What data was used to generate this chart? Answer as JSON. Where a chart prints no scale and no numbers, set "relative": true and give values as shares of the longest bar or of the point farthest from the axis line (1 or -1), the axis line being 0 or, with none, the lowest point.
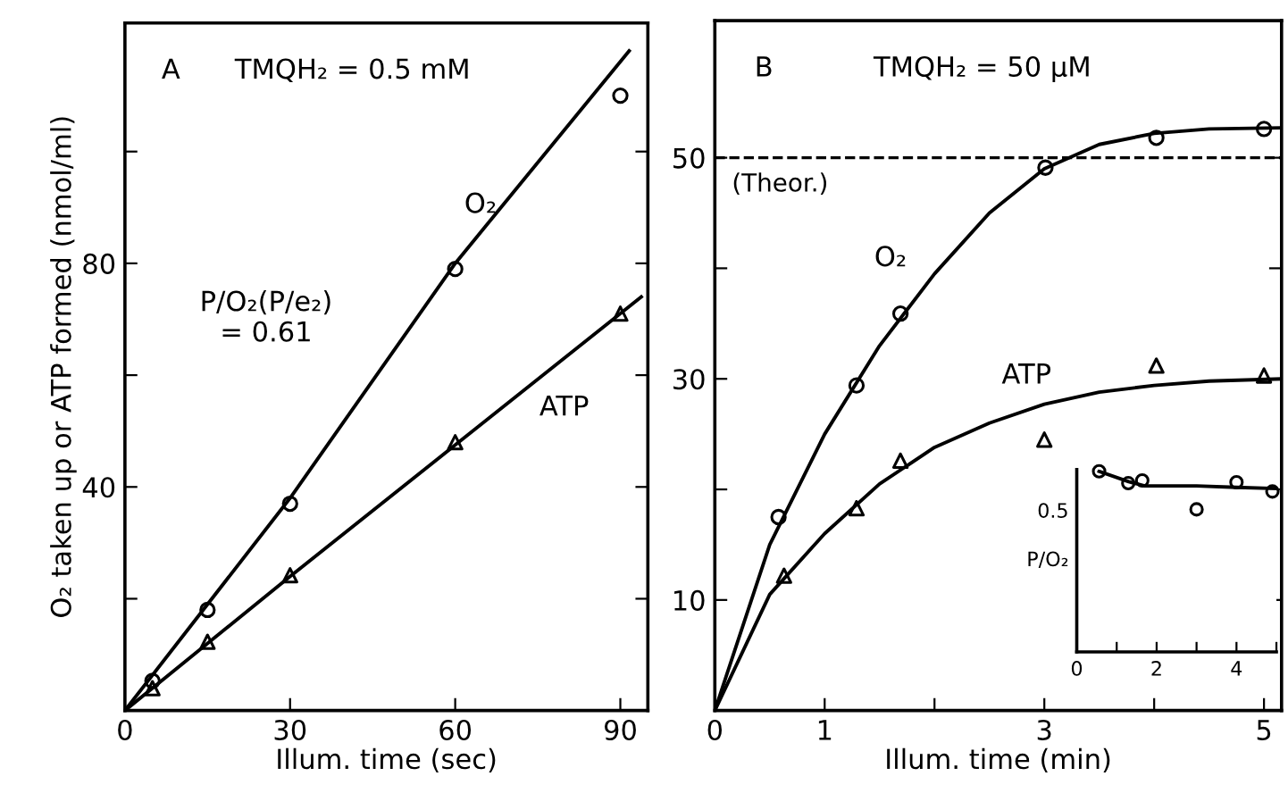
{
  "chart_data": [
    {
      "type": "scatter",
      "xlabel": "Illum. time (sec)",
      "ylabel": "O₂ taken up or ATP formed (nmol/ml)",
      "xlim": [
        0,
        95
      ],
      "ylim": [
        0,
        123
      ],
      "xticks": [
        0,
        30,
        60,
        90
      ],
      "yticks": [
        {
          "value": 20,
          "label": null
        },
        40,
        {
          "value": 60,
          "label": null
        },
        80,
        {
          "value": 100,
          "label": null
        }
      ],
      "grid": false,
      "legend": false,
      "series": [
        {
          "marker": "circle",
          "color": "#000000",
          "x": [
            5,
            15,
            30,
            60,
            90
          ],
          "values": [
            5.3,
            18,
            37,
            79,
            110
          ]
        },
        {
          "type": "line",
          "marker": "none",
          "line_style": "solid",
          "color": "#000000",
          "x": [
            0,
            30,
            60,
            91.6
          ],
          "values": [
            0,
            38,
            80,
            118
          ]
        },
        {
          "marker": "triangle",
          "color": "#000000",
          "x": [
            5,
            15,
            30,
            60,
            90
          ],
          "values": [
            4,
            12.3,
            24.2,
            48,
            71
          ]
        },
        {
          "type": "line",
          "marker": "none",
          "line_style": "solid",
          "color": "#000000",
          "x": [
            0,
            30,
            60,
            93.8
          ],
          "values": [
            0,
            24,
            47.5,
            74
          ]
        }
      ],
      "annotations": [
        "A",
        "TMQH₂ = 0.5 mM",
        "P/O₂(P/e₂)\n= 0.61",
        "O₂",
        "ATP"
      ]
    },
    {
      "type": "scatter",
      "xlabel": "Illum. time (min)",
      "xlim": [
        0,
        5.16
      ],
      "ylim": [
        0,
        62.4
      ],
      "xticks": [
        0,
        1,
        {
          "value": 2,
          "label": null
        },
        3,
        {
          "value": 4,
          "label": null
        },
        5
      ],
      "yticks": [
        10,
        {
          "value": 20,
          "label": null
        },
        30,
        {
          "value": 40,
          "label": null
        },
        50
      ],
      "grid": false,
      "legend": false,
      "series": [
        {
          "marker": "circle",
          "color": "#000000",
          "x": [
            0.58,
            1.29,
            1.69,
            3.01,
            4.02,
            5.0
          ],
          "values": [
            17.5,
            29.4,
            35.9,
            49.1,
            51.8,
            52.6
          ]
        },
        {
          "type": "line",
          "marker": "none",
          "line_style": "solid",
          "color": "#000000",
          "x": [
            0,
            0.5,
            1,
            1.5,
            2,
            2.5,
            3,
            3.5,
            4,
            4.5,
            5.15
          ],
          "values": [
            0,
            15,
            25,
            33,
            39.5,
            45,
            49,
            51.2,
            52.2,
            52.6,
            52.7
          ]
        },
        {
          "marker": "triangle",
          "color": "#000000",
          "x": [
            0.63,
            1.29,
            1.69,
            3.0,
            4.02,
            5.0
          ],
          "values": [
            12.2,
            18.3,
            22.6,
            24.5,
            31.2,
            30.3
          ]
        },
        {
          "type": "line",
          "marker": "none",
          "line_style": "solid",
          "color": "#000000",
          "x": [
            0,
            0.5,
            1,
            1.5,
            2,
            2.5,
            3,
            3.5,
            4,
            4.5,
            5.15
          ],
          "values": [
            0,
            10.5,
            16,
            20.5,
            23.8,
            26,
            27.7,
            28.8,
            29.4,
            29.8,
            30
          ]
        }
      ],
      "ref_lines": [
        {
          "axis": "y",
          "value": 50,
          "label": "(Theor.)",
          "color": "#000000",
          "line_style": "dashed"
        }
      ],
      "annotations": [
        "B",
        "TMQH₂ = 50 μM",
        "O₂",
        "ATP"
      ]
    },
    {
      "type": "scatter",
      "ylabel": "P/O₂",
      "relative": true,
      "xlim": [
        0,
        5.0
      ],
      "xticks": [
        0,
        {
          "value": 1,
          "label": null
        },
        2,
        {
          "value": 3,
          "label": null
        },
        4,
        {
          "value": 5,
          "label": null
        }
      ],
      "grid": false,
      "legend": false,
      "series": [
        {
          "marker": "circle",
          "color": "#000000",
          "x": [
            0.56,
            1.29,
            1.64,
            3.0,
            4.0,
            4.9
          ],
          "values": [
            1,
            0.934,
            0.949,
            0.789,
            0.939,
            0.888
          ]
        },
        {
          "type": "line",
          "marker": "none",
          "line_style": "solid",
          "color": "#000000",
          "x": [
            0.56,
            1.3,
            1.7,
            3,
            4,
            5
          ],
          "values": [
            1,
            0.942,
            0.919,
            0.919,
            0.911,
            0.904
          ]
        }
      ],
      "annotations": [
        "0.5"
      ]
    }
  ]
}
